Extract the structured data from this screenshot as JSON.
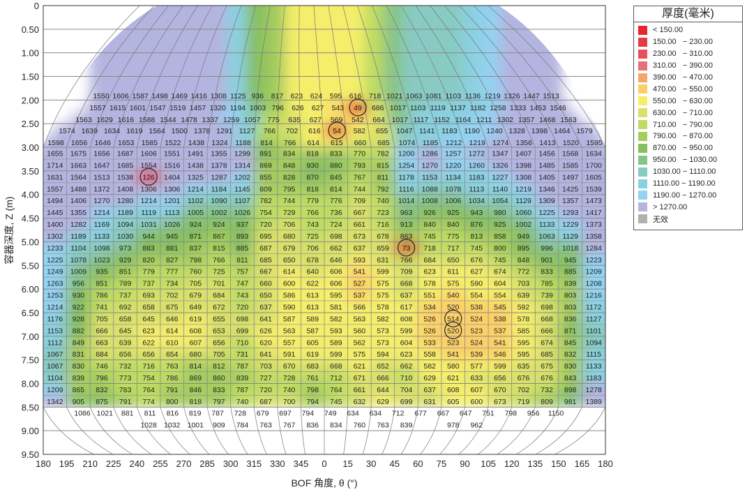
{
  "chart_data": {
    "type": "heatmap",
    "xlabel": "BOF 角度, θ (°)",
    "ylabel": "容器深度, Z (m)",
    "x_ticks": [
      "180",
      "195",
      "210",
      "225",
      "240",
      "255",
      "270",
      "285",
      "300",
      "315",
      "330",
      "345",
      "0",
      "15",
      "30",
      "45",
      "60",
      "75",
      "90",
      "105",
      "120",
      "135",
      "150",
      "165",
      "180"
    ],
    "y_ticks": [
      "0",
      "0.50",
      "1.00",
      "1.50",
      "2.00",
      "2.50",
      "3.00",
      "3.50",
      "4.00",
      "4.50",
      "5.00",
      "5.50",
      "6.00",
      "6.50",
      "7.00",
      "7.50",
      "8.00",
      "8.50",
      "9.00",
      "9.50"
    ],
    "ylim": [
      0,
      9.5
    ],
    "legend": {
      "title": "厚度(毫米)",
      "placement": "right",
      "entries": [
        {
          "label": "< 150.00",
          "color": "#e8242c",
          "max": 150
        },
        {
          "label": "150.00   − 230.00",
          "color": "#e33a45",
          "max": 230
        },
        {
          "label": "230.00   − 310.00",
          "color": "#e6505a",
          "max": 310
        },
        {
          "label": "310.00   − 390.00",
          "color": "#e57078",
          "max": 390
        },
        {
          "label": "390.00   − 470.00",
          "color": "#f5a66a",
          "max": 470
        },
        {
          "label": "470.00   − 550.00",
          "color": "#fcd068",
          "max": 550
        },
        {
          "label": "550.00   − 630.00",
          "color": "#f5ee6a",
          "max": 630
        },
        {
          "label": "630.00   − 710.00",
          "color": "#d9e06a",
          "max": 710
        },
        {
          "label": "710.00   − 790.00",
          "color": "#bedc62",
          "max": 790
        },
        {
          "label": "790.00   − 870.00",
          "color": "#a4cc5e",
          "max": 870
        },
        {
          "label": "870.00   − 950.00",
          "color": "#86c060",
          "max": 950
        },
        {
          "label": "950.00   − 1030.00",
          "color": "#88c488",
          "max": 1030
        },
        {
          "label": "1030.00 − 1110.00",
          "color": "#88cbc2",
          "max": 1110
        },
        {
          "label": "1110.00 − 1190.00",
          "color": "#8ad0e0",
          "max": 1190
        },
        {
          "label": "1190.00 − 1270.00",
          "color": "#94d2f2",
          "max": 1270
        },
        {
          "label": "> 1270.00",
          "color": "#b4b4e0",
          "max": 100000
        },
        {
          "label": "无效",
          "color": "#b0b0b0"
        }
      ]
    },
    "top_rows": [
      [
        1550,
        1606,
        1587,
        1498,
        1469,
        1416,
        1308,
        1125,
        936,
        817,
        623,
        624,
        595,
        616,
        718,
        1021,
        1063,
        1081,
        1103,
        1136,
        1219,
        1326,
        1447,
        1513
      ],
      [
        1557,
        1615,
        1601,
        1547,
        1519,
        1457,
        1320,
        1194,
        1003,
        796,
        626,
        627,
        543,
        49,
        686,
        1017,
        1103,
        1119,
        1137,
        1182,
        1258,
        1333,
        1453,
        1546
      ],
      [
        1563,
        1629,
        1616,
        1588,
        1544,
        1478,
        1337,
        1259,
        1057,
        775,
        635,
        627,
        569,
        542,
        664,
        1017,
        1117,
        1152,
        1164,
        1211,
        1302,
        1357,
        1468,
        1563
      ],
      [
        1574,
        1639,
        1634,
        1619,
        1564,
        1500,
        1378,
        1291,
        1127,
        766,
        702,
        616,
        54,
        582,
        655,
        1047,
        1141,
        1183,
        1190,
        1240,
        1328,
        1398,
        1464,
        1579
      ],
      [
        1598,
        1656,
        1646,
        1653,
        1585,
        1522,
        1438,
        1324,
        1188,
        814,
        766,
        614,
        615,
        660,
        685,
        1074,
        1185,
        1212,
        1219,
        1274,
        1356,
        1413,
        1520,
        1595
      ]
    ],
    "rows": [
      [
        1655,
        1675,
        1656,
        1687,
        1606,
        1551,
        1491,
        1355,
        1299,
        891,
        834,
        818,
        833,
        770,
        782,
        1200,
        1286,
        1257,
        1272,
        1347,
        1407,
        1456,
        1568,
        1634
      ],
      [
        1714,
        1663,
        1647,
        1685,
        1554,
        1516,
        1438,
        1378,
        1314,
        869,
        848,
        930,
        880,
        793,
        815,
        1254,
        1270,
        1220,
        1260,
        1326,
        1398,
        1485,
        1585,
        1700
      ],
      [
        1631,
        1564,
        1513,
        1538,
        126,
        1404,
        1325,
        1287,
        1202,
        855,
        828,
        870,
        845,
        767,
        811,
        1178,
        1153,
        1134,
        1183,
        1227,
        1308,
        1405,
        1497,
        1605
      ],
      [
        1557,
        1488,
        1372,
        1408,
        1306,
        1306,
        1214,
        1184,
        1145,
        809,
        795,
        818,
        814,
        744,
        792,
        1116,
        1088,
        1078,
        1113,
        1140,
        1219,
        1346,
        1425,
        1539
      ],
      [
        1494,
        1406,
        1270,
        1280,
        1214,
        1201,
        1102,
        1090,
        1107,
        782,
        744,
        779,
        776,
        709,
        740,
        1014,
        1008,
        1006,
        1034,
        1054,
        1129,
        1309,
        1357,
        1473
      ],
      [
        1445,
        1355,
        1214,
        1189,
        1119,
        1113,
        1005,
        1002,
        1026,
        754,
        729,
        766,
        736,
        667,
        723,
        963,
        926,
        925,
        943,
        980,
        1060,
        1225,
        1293,
        1417
      ],
      [
        1400,
        1282,
        1169,
        1094,
        1031,
        1026,
        924,
        924,
        937,
        720,
        706,
        743,
        724,
        661,
        716,
        913,
        840,
        840,
        876,
        925,
        1002,
        1133,
        1229,
        1373
      ],
      [
        1302,
        1189,
        1133,
        1030,
        944,
        945,
        871,
        867,
        893,
        695,
        680,
        725,
        698,
        673,
        678,
        863,
        745,
        775,
        813,
        858,
        949,
        1063,
        1129,
        1358
      ],
      [
        1233,
        1104,
        1098,
        973,
        883,
        881,
        837,
        815,
        885,
        687,
        679,
        706,
        662,
        637,
        659,
        73,
        718,
        717,
        745,
        800,
        895,
        996,
        1018,
        1284
      ],
      [
        1225,
        1078,
        1023,
        929,
        820,
        827,
        798,
        766,
        811,
        685,
        650,
        678,
        646,
        593,
        631,
        766,
        684,
        650,
        676,
        745,
        848,
        901,
        945,
        1223
      ],
      [
        1249,
        1009,
        935,
        851,
        779,
        777,
        760,
        725,
        757,
        667,
        614,
        640,
        606,
        541,
        599,
        709,
        623,
        611,
        627,
        674,
        772,
        833,
        885,
        1209
      ],
      [
        1263,
        956,
        851,
        789,
        737,
        734,
        705,
        701,
        747,
        660,
        600,
        622,
        606,
        527,
        575,
        668,
        578,
        575,
        590,
        604,
        703,
        785,
        839,
        1208
      ],
      [
        1253,
        930,
        786,
        737,
        693,
        702,
        679,
        684,
        743,
        650,
        586,
        613,
        595,
        537,
        575,
        637,
        551,
        540,
        554,
        554,
        639,
        739,
        803,
        1216
      ],
      [
        1214,
        922,
        741,
        692,
        658,
        675,
        649,
        672,
        720,
        637,
        590,
        613,
        581,
        566,
        578,
        617,
        534,
        520,
        538,
        545,
        592,
        698,
        803,
        1172
      ],
      [
        1176,
        928,
        705,
        658,
        645,
        646,
        619,
        655,
        698,
        641,
        587,
        589,
        582,
        563,
        582,
        608,
        526,
        514,
        524,
        538,
        578,
        668,
        836,
        1127
      ],
      [
        1153,
        882,
        666,
        645,
        623,
        614,
        608,
        653,
        699,
        626,
        563,
        587,
        593,
        560,
        573,
        599,
        526,
        520,
        523,
        537,
        585,
        666,
        871,
        1101
      ],
      [
        1112,
        849,
        663,
        639,
        622,
        610,
        607,
        656,
        710,
        620,
        557,
        605,
        589,
        562,
        573,
        604,
        533,
        523,
        524,
        541,
        595,
        674,
        845,
        1094
      ],
      [
        1067,
        831,
        684,
        656,
        656,
        654,
        680,
        705,
        731,
        641,
        591,
        619,
        599,
        575,
        594,
        623,
        558,
        541,
        539,
        546,
        595,
        685,
        832,
        1115
      ],
      [
        1067,
        830,
        746,
        732,
        716,
        763,
        814,
        812,
        787,
        703,
        670,
        683,
        668,
        621,
        652,
        662,
        582,
        580,
        577,
        599,
        635,
        675,
        830,
        1133
      ],
      [
        1104,
        839,
        796,
        773,
        754,
        786,
        869,
        860,
        839,
        727,
        728,
        761,
        712,
        671,
        666,
        710,
        629,
        621,
        633,
        656,
        676,
        676,
        843,
        1183
      ],
      [
        1209,
        865,
        832,
        783,
        764,
        791,
        846,
        833,
        787,
        720,
        740,
        798,
        764,
        661,
        644,
        704,
        637,
        608,
        607,
        670,
        702,
        732,
        898,
        1278
      ],
      [
        1342,
        905,
        875,
        791,
        774,
        800,
        818,
        797,
        740,
        687,
        700,
        794,
        745,
        632,
        629,
        699,
        631,
        605,
        600,
        673,
        719,
        809,
        981,
        1389
      ]
    ],
    "row_start_z": 3.0,
    "row_step_z": 0.25,
    "bottom_row_1": [
      1086,
      1021,
      881,
      811,
      816,
      819,
      787,
      728,
      679,
      697,
      794,
      749,
      634,
      634,
      712,
      677,
      667,
      647,
      751,
      798,
      956,
      1150
    ],
    "bottom_row_2": [
      null,
      null,
      null,
      null,
      1028,
      1032,
      1001,
      909,
      784,
      763,
      767,
      836,
      834,
      760,
      763,
      839,
      null,
      978,
      962,
      null,
      null,
      null,
      null,
      null
    ],
    "circled": [
      {
        "set": "rows",
        "row": 2,
        "col": 4
      },
      {
        "set": "top_rows",
        "row": 1,
        "col": 13
      },
      {
        "set": "top_rows",
        "row": 3,
        "col": 12
      },
      {
        "set": "rows",
        "row": 8,
        "col": 15
      },
      {
        "set": "rows",
        "row": 14,
        "col": 17
      },
      {
        "set": "rows",
        "row": 15,
        "col": 17
      }
    ]
  }
}
